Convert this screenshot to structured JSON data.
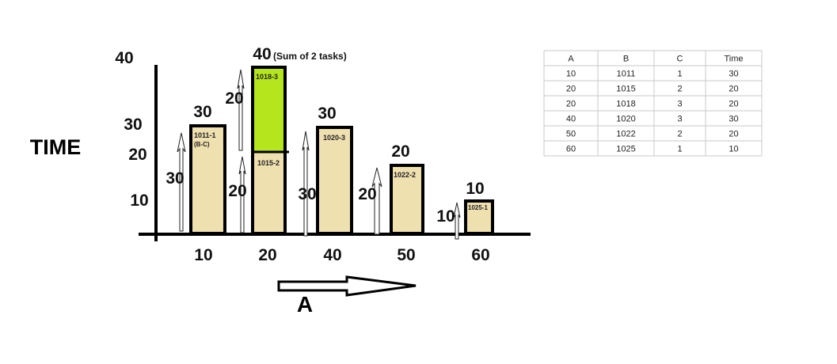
{
  "y_axis": {
    "title": "TIME",
    "labels": [
      "40",
      "30",
      "20",
      "10"
    ]
  },
  "x_axis": {
    "title": "A",
    "labels": [
      "10",
      "20",
      "40",
      "50",
      "60"
    ]
  },
  "bars": [
    {
      "top_label": "30",
      "tasks": [
        "1011-1"
      ],
      "note": "(B-C)",
      "arrow_labels": [
        "30"
      ]
    },
    {
      "top_label": "40",
      "top_note": "(Sum of 2 tasks)",
      "tasks": [
        "1018-3",
        "1015-2"
      ],
      "arrow_labels": [
        "20",
        "20"
      ]
    },
    {
      "top_label": "30",
      "tasks": [
        "1020-3"
      ],
      "arrow_labels": [
        "30"
      ]
    },
    {
      "top_label": "20",
      "tasks": [
        "1022-2"
      ],
      "arrow_labels": [
        "20"
      ]
    },
    {
      "top_label": "10",
      "tasks": [
        "1025-1"
      ],
      "arrow_labels": [
        "10"
      ]
    }
  ],
  "table": {
    "header": [
      "A",
      "B",
      "C",
      "Time"
    ],
    "rows": [
      [
        "10",
        "1011",
        "1",
        "30"
      ],
      [
        "20",
        "1015",
        "2",
        "20"
      ],
      [
        "20",
        "1018",
        "3",
        "20"
      ],
      [
        "40",
        "1020",
        "3",
        "30"
      ],
      [
        "50",
        "1022",
        "2",
        "20"
      ],
      [
        "60",
        "1025",
        "1",
        "10"
      ]
    ]
  }
}
